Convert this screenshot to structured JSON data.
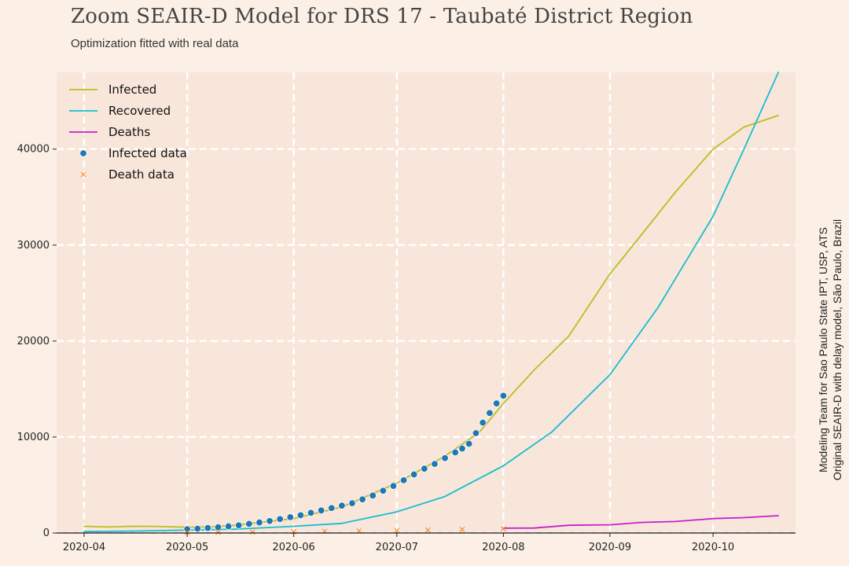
{
  "title": "Zoom SEAIR-D Model for DRS 17 - Taubaté District Region",
  "subtitle": "Optimization fitted with real data",
  "credit": {
    "line1": "Modeling Team for Sao Paulo State IPT, USP, ATS",
    "line2": "Original SEAIR-D with delay model, São Paulo, Brazil"
  },
  "colors": {
    "background": "#fcf0e6",
    "plot_background": "#f8e6da",
    "grid": "#ffffff",
    "infected": "#bcbd22",
    "recovered": "#17becf",
    "deaths": "#c61fd1",
    "infected_data": "#1f77b4",
    "death_data": "#ff7f0e"
  },
  "chart_data": {
    "type": "line",
    "title": "Zoom SEAIR-D Model for DRS 17 - Taubaté District Region",
    "subtitle": "Optimization fitted with real data",
    "xlabel": "",
    "ylabel": "",
    "x_is_date": true,
    "xlim": [
      "2020-03-24",
      "2020-10-25"
    ],
    "ylim": [
      0,
      48000
    ],
    "xticks": [
      {
        "date": "2020-04-01",
        "label": "2020-04"
      },
      {
        "date": "2020-05-01",
        "label": "2020-05"
      },
      {
        "date": "2020-06-01",
        "label": "2020-06"
      },
      {
        "date": "2020-07-01",
        "label": "2020-07"
      },
      {
        "date": "2020-08-01",
        "label": "2020-08"
      },
      {
        "date": "2020-09-01",
        "label": "2020-09"
      },
      {
        "date": "2020-10-01",
        "label": "2020-10"
      }
    ],
    "yticks": [
      0,
      10000,
      20000,
      30000,
      40000
    ],
    "grid": true,
    "legend_position": "top-left",
    "series": [
      {
        "name": "Infected",
        "kind": "line",
        "color": "#bcbd22",
        "points": [
          [
            "2020-04-01",
            700
          ],
          [
            "2020-04-08",
            620
          ],
          [
            "2020-04-15",
            700
          ],
          [
            "2020-04-22",
            690
          ],
          [
            "2020-05-01",
            600
          ],
          [
            "2020-05-08",
            650
          ],
          [
            "2020-05-15",
            800
          ],
          [
            "2020-06-01",
            1500
          ],
          [
            "2020-06-15",
            2700
          ],
          [
            "2020-07-01",
            5200
          ],
          [
            "2020-07-15",
            8000
          ],
          [
            "2020-07-25",
            10500
          ],
          [
            "2020-08-01",
            13500
          ],
          [
            "2020-08-10",
            17000
          ],
          [
            "2020-08-20",
            20500
          ],
          [
            "2020-09-01",
            27000
          ],
          [
            "2020-09-10",
            31000
          ],
          [
            "2020-09-20",
            35500
          ],
          [
            "2020-10-01",
            40000
          ],
          [
            "2020-10-10",
            42300
          ],
          [
            "2020-10-20",
            43500
          ]
        ]
      },
      {
        "name": "Recovered",
        "kind": "line",
        "color": "#17becf",
        "points": [
          [
            "2020-04-01",
            150
          ],
          [
            "2020-04-15",
            200
          ],
          [
            "2020-05-01",
            300
          ],
          [
            "2020-05-15",
            400
          ],
          [
            "2020-06-01",
            700
          ],
          [
            "2020-06-15",
            1000
          ],
          [
            "2020-07-01",
            2200
          ],
          [
            "2020-07-15",
            3800
          ],
          [
            "2020-08-01",
            7000
          ],
          [
            "2020-08-15",
            10500
          ],
          [
            "2020-09-01",
            16500
          ],
          [
            "2020-09-15",
            23500
          ],
          [
            "2020-10-01",
            33000
          ],
          [
            "2020-10-10",
            40000
          ],
          [
            "2020-10-20",
            48000
          ]
        ]
      },
      {
        "name": "Deaths",
        "kind": "line",
        "color": "#c61fd1",
        "points": [
          [
            "2020-08-01",
            500
          ],
          [
            "2020-08-10",
            520
          ],
          [
            "2020-08-20",
            800
          ],
          [
            "2020-09-01",
            850
          ],
          [
            "2020-09-10",
            1100
          ],
          [
            "2020-09-20",
            1200
          ],
          [
            "2020-10-01",
            1500
          ],
          [
            "2020-10-10",
            1600
          ],
          [
            "2020-10-20",
            1800
          ]
        ]
      },
      {
        "name": "Infected data",
        "kind": "scatter",
        "color": "#1f77b4",
        "points": [
          [
            "2020-05-01",
            400
          ],
          [
            "2020-05-04",
            450
          ],
          [
            "2020-05-07",
            520
          ],
          [
            "2020-05-10",
            600
          ],
          [
            "2020-05-13",
            700
          ],
          [
            "2020-05-16",
            800
          ],
          [
            "2020-05-19",
            950
          ],
          [
            "2020-05-22",
            1100
          ],
          [
            "2020-05-25",
            1250
          ],
          [
            "2020-05-28",
            1450
          ],
          [
            "2020-05-31",
            1650
          ],
          [
            "2020-06-03",
            1850
          ],
          [
            "2020-06-06",
            2100
          ],
          [
            "2020-06-09",
            2350
          ],
          [
            "2020-06-12",
            2600
          ],
          [
            "2020-06-15",
            2850
          ],
          [
            "2020-06-18",
            3100
          ],
          [
            "2020-06-21",
            3500
          ],
          [
            "2020-06-24",
            3900
          ],
          [
            "2020-06-27",
            4400
          ],
          [
            "2020-06-30",
            4900
          ],
          [
            "2020-07-03",
            5500
          ],
          [
            "2020-07-06",
            6100
          ],
          [
            "2020-07-09",
            6700
          ],
          [
            "2020-07-12",
            7200
          ],
          [
            "2020-07-15",
            7800
          ],
          [
            "2020-07-18",
            8400
          ],
          [
            "2020-07-20",
            8800
          ],
          [
            "2020-07-22",
            9300
          ],
          [
            "2020-07-24",
            10400
          ],
          [
            "2020-07-26",
            11500
          ],
          [
            "2020-07-28",
            12500
          ],
          [
            "2020-07-30",
            13500
          ],
          [
            "2020-08-01",
            14300
          ]
        ]
      },
      {
        "name": "Death data",
        "kind": "marker-x",
        "color": "#ff7f0e",
        "points": [
          [
            "2020-05-01",
            50
          ],
          [
            "2020-05-10",
            70
          ],
          [
            "2020-05-20",
            100
          ],
          [
            "2020-06-01",
            130
          ],
          [
            "2020-06-10",
            170
          ],
          [
            "2020-06-20",
            210
          ],
          [
            "2020-07-01",
            260
          ],
          [
            "2020-07-10",
            310
          ],
          [
            "2020-07-20",
            370
          ],
          [
            "2020-08-01",
            430
          ]
        ]
      }
    ]
  }
}
